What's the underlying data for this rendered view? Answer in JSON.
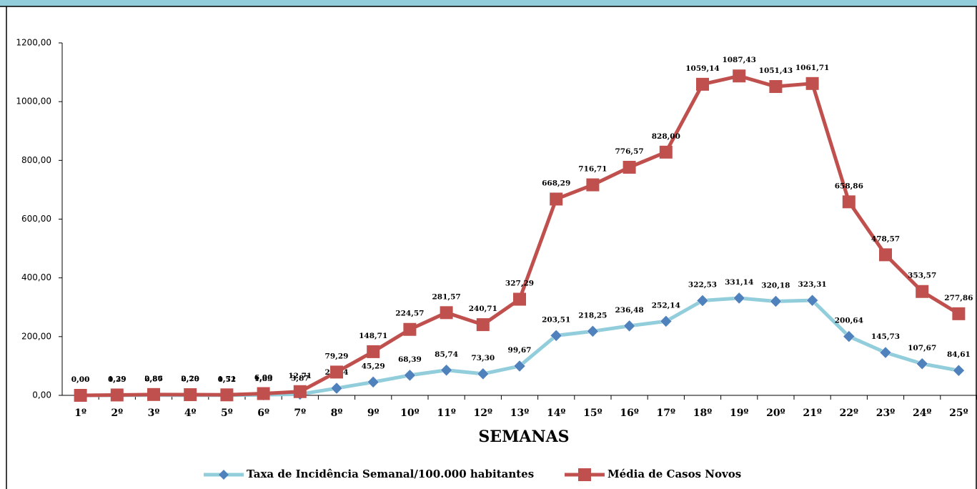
{
  "chart_data": {
    "type": "line",
    "x_label": "SEMANAS",
    "categories": [
      "1º",
      "2º",
      "3º",
      "4º",
      "5º",
      "6º",
      "7º",
      "8º",
      "9º",
      "10º",
      "11º",
      "12º",
      "13º",
      "14º",
      "15º",
      "16º",
      "17º",
      "18º",
      "19º",
      "20º",
      "21º",
      "22º",
      "23º",
      "24º",
      "25º"
    ],
    "series": [
      {
        "name": "Taxa de Incidência Semanal/100.000 habitantes",
        "color": "#92cddc",
        "marker_color": "#4f81bd",
        "marker": "diamond",
        "values": [
          0,
          0.39,
          0.87,
          0.7,
          0.52,
          1.83,
          3.87,
          24.14,
          45.29,
          68.39,
          85.74,
          73.3,
          99.67,
          203.51,
          218.25,
          236.48,
          252.14,
          322.53,
          331.14,
          320.18,
          323.31,
          200.64,
          145.73,
          107.67,
          84.61
        ],
        "value_labels": [
          "0,00",
          "0,39",
          "0,87",
          "0,70",
          "0,52",
          "1,83",
          "3,87",
          "24,14",
          "45,29",
          "68,39",
          "85,74",
          "73,30",
          "99,67",
          "203,51",
          "218,25",
          "236,48",
          "252,14",
          "322,53",
          "331,14",
          "320,18",
          "323,31",
          "200,64",
          "145,73",
          "107,67",
          "84,61"
        ]
      },
      {
        "name": "Média de Casos Novos",
        "color": "#c0504d",
        "marker_color": "#c0504d",
        "marker": "square",
        "values": [
          0,
          1.29,
          2.86,
          2.29,
          1.71,
          6,
          12.71,
          79.29,
          148.71,
          224.57,
          281.57,
          240.71,
          327.29,
          668.29,
          716.71,
          776.57,
          828,
          1059.14,
          1087.43,
          1051.43,
          1061.71,
          658.86,
          478.57,
          353.57,
          277.86
        ],
        "value_labels": [
          "0,00",
          "1,29",
          "2,86",
          "2,29",
          "1,71",
          "6,00",
          "12,71",
          "79,29",
          "148,71",
          "224,57",
          "281,57",
          "240,71",
          "327,29",
          "668,29",
          "716,71",
          "776,57",
          "828,00",
          "1059,14",
          "1087,43",
          "1051,43",
          "1061,71",
          "658,86",
          "478,57",
          "353,57",
          "277,86"
        ]
      }
    ],
    "ylim": [
      0,
      1200
    ],
    "yticks": [
      {
        "value": 0,
        "label": "0,00"
      },
      {
        "value": 200,
        "label": "200,00"
      },
      {
        "value": 400,
        "label": "400,00"
      },
      {
        "value": 600,
        "label": "600,00"
      },
      {
        "value": 800,
        "label": "800,00"
      },
      {
        "value": 1000,
        "label": "1000,00"
      },
      {
        "value": 1200,
        "label": "1200,00"
      }
    ],
    "grid": false
  }
}
